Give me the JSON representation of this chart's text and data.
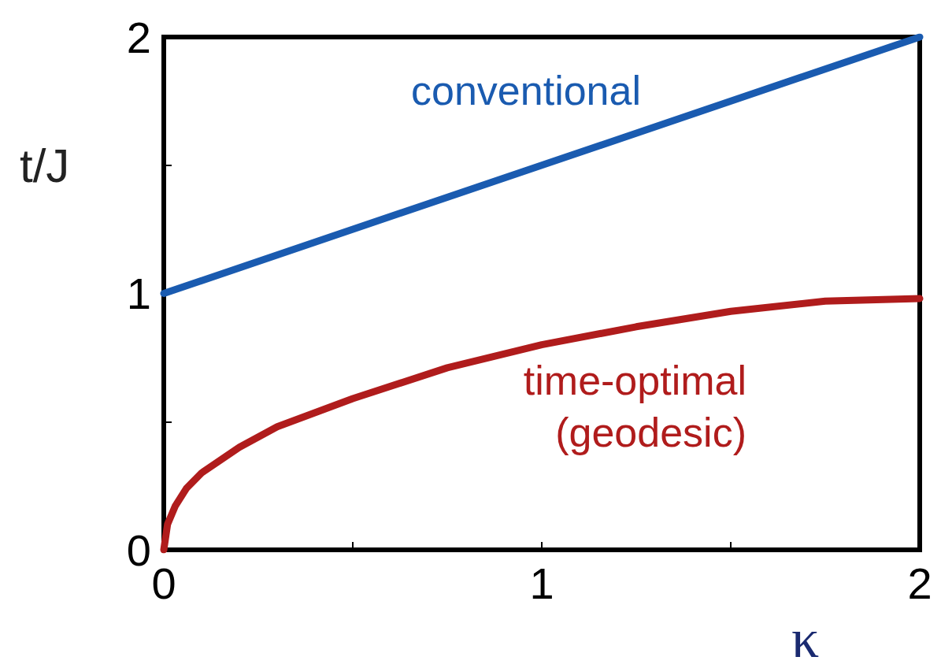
{
  "chart_data": {
    "type": "line",
    "xlabel": "κ",
    "ylabel": "t/J",
    "xlim": [
      0,
      2
    ],
    "ylim": [
      0,
      2
    ],
    "xticks": [
      0,
      {
        "value": 0.5,
        "label": null
      },
      1,
      {
        "value": 1.5,
        "label": null
      },
      2
    ],
    "yticks": [
      0,
      {
        "value": 0.5,
        "label": null
      },
      1,
      {
        "value": 1.5,
        "label": null
      },
      2
    ],
    "grid": false,
    "marker": "none",
    "series": [
      {
        "name": "conventional",
        "color": "#1a5bb0",
        "x": [
          0,
          1,
          2
        ],
        "values": [
          1,
          1.5,
          2
        ]
      },
      {
        "name": "time-optimal\n(geodesic)",
        "color": "#b01c1c",
        "x": [
          0,
          0.01,
          0.03,
          0.06,
          0.1,
          0.2,
          0.3,
          0.5,
          0.75,
          1,
          1.25,
          1.5,
          1.75,
          2
        ],
        "values": [
          0,
          0.1,
          0.17,
          0.24,
          0.3,
          0.4,
          0.48,
          0.59,
          0.71,
          0.8,
          0.87,
          0.93,
          0.97,
          0.98
        ]
      }
    ]
  }
}
